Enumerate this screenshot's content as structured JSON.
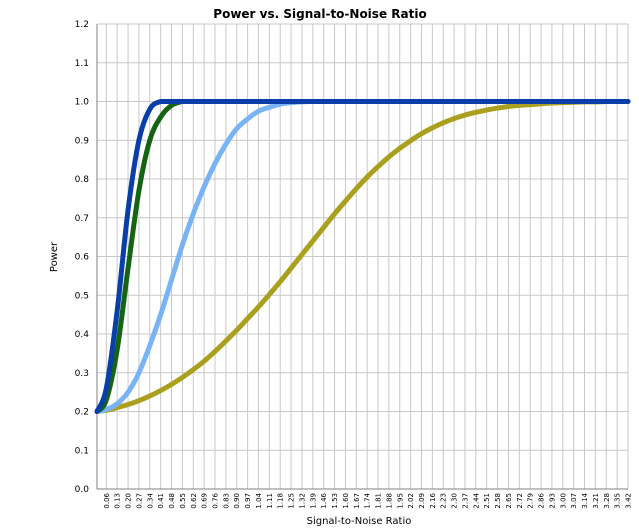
{
  "chart_data": {
    "type": "line",
    "title": "Power vs. Signal-to-Noise Ratio",
    "xlabel": "Signal-to-Noise Ratio",
    "ylabel": "Power",
    "xlim": [
      0,
      3.42
    ],
    "ylim": [
      0.0,
      1.2
    ],
    "grid": true,
    "ytick_labels": [
      "0.0",
      "0.1",
      "0.2",
      "0.3",
      "0.4",
      "0.5",
      "0.6",
      "0.7",
      "0.8",
      "0.9",
      "1.0",
      "1.1",
      "1.2"
    ],
    "xtick_labels": [
      "0.06",
      "0.13",
      "0.20",
      "0.27",
      "0.34",
      "0.41",
      "0.48",
      "0.55",
      "0.62",
      "0.69",
      "0.76",
      "0.83",
      "0.90",
      "0.97",
      "1.04",
      "1.11",
      "1.18",
      "1.25",
      "1.32",
      "1.39",
      "1.46",
      "1.53",
      "1.60",
      "1.67",
      "1.74",
      "1.81",
      "1.88",
      "1.95",
      "2.02",
      "2.09",
      "2.16",
      "2.23",
      "2.30",
      "2.37",
      "2.44",
      "2.51",
      "2.58",
      "2.65",
      "2.72",
      "2.79",
      "2.86",
      "2.93",
      "3.00",
      "3.07",
      "3.14",
      "3.21",
      "3.28",
      "3.35",
      "3.42"
    ],
    "x": [
      0.0,
      0.06,
      0.13,
      0.2,
      0.27,
      0.34,
      0.41,
      0.48,
      0.55,
      0.62,
      0.69,
      0.76,
      0.83,
      0.9,
      0.97,
      1.04,
      1.11,
      1.18,
      1.25,
      1.32,
      1.39,
      1.46,
      1.53,
      1.6,
      1.67,
      1.74,
      1.81,
      1.88,
      1.95,
      2.02,
      2.09,
      2.16,
      2.23,
      2.3,
      2.37,
      2.44,
      2.51,
      2.58,
      2.65,
      2.72,
      2.79,
      2.86,
      2.93,
      3.0,
      3.07,
      3.14,
      3.21,
      3.28,
      3.35,
      3.42
    ],
    "series": [
      {
        "color": "#0a3ea8",
        "values": [
          0.2,
          0.26,
          0.46,
          0.72,
          0.9,
          0.98,
          1.0,
          1.0,
          1.0,
          1.0,
          1.0,
          1.0,
          1.0,
          1.0,
          1.0,
          1.0,
          1.0,
          1.0,
          1.0,
          1.0,
          1.0,
          1.0,
          1.0,
          1.0,
          1.0,
          1.0,
          1.0,
          1.0,
          1.0,
          1.0,
          1.0,
          1.0,
          1.0,
          1.0,
          1.0,
          1.0,
          1.0,
          1.0,
          1.0,
          1.0,
          1.0,
          1.0,
          1.0,
          1.0,
          1.0,
          1.0,
          1.0,
          1.0,
          1.0,
          1.0
        ]
      },
      {
        "color": "#146414",
        "values": [
          0.2,
          0.23,
          0.36,
          0.57,
          0.77,
          0.9,
          0.96,
          0.99,
          1.0,
          1.0,
          1.0,
          1.0,
          1.0,
          1.0,
          1.0,
          1.0,
          1.0,
          1.0,
          1.0,
          1.0,
          1.0,
          1.0,
          1.0,
          1.0,
          1.0,
          1.0,
          1.0,
          1.0,
          1.0,
          1.0,
          1.0,
          1.0,
          1.0,
          1.0,
          1.0,
          1.0,
          1.0,
          1.0,
          1.0,
          1.0,
          1.0,
          1.0,
          1.0,
          1.0,
          1.0,
          1.0,
          1.0,
          1.0,
          1.0,
          1.0
        ]
      },
      {
        "color": "#78b4f5",
        "values": [
          0.2,
          0.205,
          0.22,
          0.25,
          0.3,
          0.37,
          0.45,
          0.54,
          0.63,
          0.71,
          0.78,
          0.84,
          0.89,
          0.93,
          0.955,
          0.975,
          0.985,
          0.993,
          0.997,
          0.999,
          1.0,
          1.0,
          1.0,
          1.0,
          1.0,
          1.0,
          1.0,
          1.0,
          1.0,
          1.0,
          1.0,
          1.0,
          1.0,
          1.0,
          1.0,
          1.0,
          1.0,
          1.0,
          1.0,
          1.0,
          1.0,
          1.0,
          1.0,
          1.0,
          1.0,
          1.0,
          1.0,
          1.0,
          1.0,
          1.0
        ]
      },
      {
        "color": "#aaa01e",
        "values": [
          0.2,
          0.203,
          0.21,
          0.218,
          0.228,
          0.24,
          0.254,
          0.27,
          0.288,
          0.308,
          0.33,
          0.355,
          0.382,
          0.41,
          0.44,
          0.47,
          0.502,
          0.535,
          0.57,
          0.605,
          0.64,
          0.675,
          0.71,
          0.743,
          0.775,
          0.805,
          0.832,
          0.857,
          0.879,
          0.899,
          0.917,
          0.932,
          0.945,
          0.956,
          0.965,
          0.972,
          0.978,
          0.983,
          0.987,
          0.99,
          0.992,
          0.994,
          0.996,
          0.997,
          0.998,
          0.999,
          0.999,
          1.0,
          1.0,
          1.0
        ]
      }
    ]
  }
}
